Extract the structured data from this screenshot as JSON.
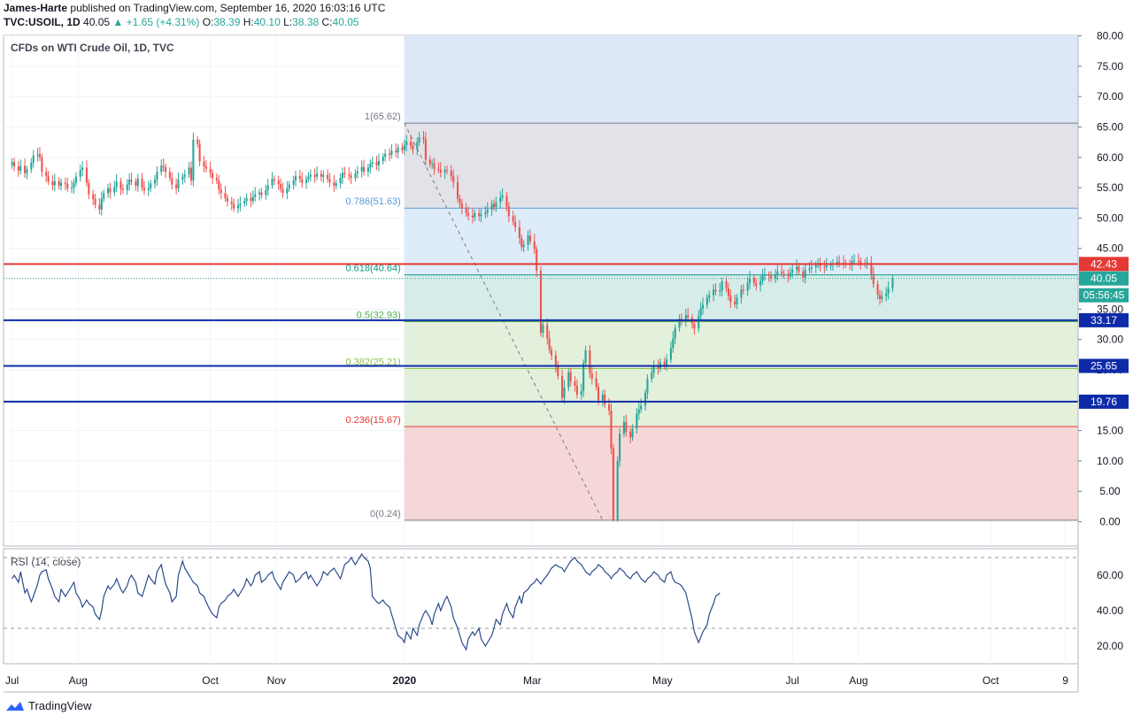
{
  "header": {
    "author": "James-Harte",
    "published_text": "published on TradingView.com, September 16, 2020 16:03:16 UTC",
    "symbol": "TVC:USOIL, 1D",
    "last": "40.05",
    "change": "+1.65 (+4.31%)",
    "open_label": "O:",
    "open": "38.39",
    "high_label": "H:",
    "high": "40.10",
    "low_label": "L:",
    "low": "38.38",
    "close_label": "C:",
    "close": "40.05"
  },
  "pane_titles": {
    "main": "CFDs on WTI Crude Oil, 1D, TVC",
    "rsi": "RSI (14, close)"
  },
  "footer": {
    "brand": "TradingView"
  },
  "colors": {
    "up": "#26a69a",
    "down": "#ef5350",
    "red_line": "#e53935",
    "blue_line": "#0d2ba8",
    "rsi_line": "#2a4a8c",
    "fib_top_blue": "#dce8f8",
    "fib_grey": "#e2e3e8",
    "fib_mid_blue": "#deebf8",
    "fib_teal": "#d6ece8",
    "fib_green": "#e3f0dc",
    "fib_red": "#f6d7d7"
  },
  "chart_data": [
    {
      "type": "candlestick",
      "title": "CFDs on WTI Crude Oil, 1D, TVC",
      "ylim": [
        0,
        80
      ],
      "y_ticks": [
        "0.00",
        "5.00",
        "10.00",
        "15.00",
        "20.00",
        "25.00",
        "30.00",
        "35.00",
        "40.00",
        "45.00",
        "50.00",
        "55.00",
        "60.00",
        "65.00",
        "70.00",
        "75.00",
        "80.00"
      ],
      "x_ticks": [
        "Jul",
        "Aug",
        "Oct",
        "Nov",
        "2020",
        "Mar",
        "May",
        "Jul",
        "Aug",
        "Oct",
        "9"
      ],
      "x_tick_days": [
        0,
        31,
        93,
        124,
        184,
        244,
        305,
        366,
        397,
        459,
        494
      ],
      "x_range_days": [
        -4,
        500
      ],
      "closes": [
        59.2,
        58.5,
        57.8,
        58.6,
        57.4,
        58.0,
        59.1,
        60.3,
        60.5,
        60.0,
        57.6,
        56.9,
        56.0,
        55.4,
        56.1,
        55.3,
        55.8,
        55.6,
        54.9,
        55.0,
        55.8,
        56.8,
        57.9,
        58.3,
        55.8,
        53.9,
        53.1,
        52.2,
        51.4,
        53.2,
        54.1,
        54.9,
        54.2,
        55.1,
        56.0,
        54.8,
        54.6,
        55.5,
        56.3,
        56.0,
        55.3,
        56.5,
        55.0,
        54.6,
        54.9,
        55.7,
        56.3,
        57.6,
        58.6,
        58.4,
        57.6,
        56.6,
        55.5,
        54.9,
        56.3,
        56.8,
        57.2,
        58.3,
        56.2,
        62.9,
        62.2,
        59.3,
        58.5,
        58.1,
        57.4,
        56.6,
        56.2,
        54.7,
        54.1,
        53.3,
        52.7,
        52.3,
        51.6,
        52.1,
        52.4,
        52.8,
        53.3,
        52.8,
        53.5,
        53.9,
        54.2,
        53.8,
        54.6,
        55.4,
        56.4,
        56.2,
        55.6,
        54.8,
        54.1,
        54.9,
        55.5,
        56.2,
        56.9,
        56.4,
        55.8,
        56.4,
        56.8,
        57.1,
        56.8,
        57.3,
        56.8,
        57.1,
        56.4,
        55.9,
        55.3,
        55.7,
        56.6,
        57.4,
        57.2,
        57.0,
        56.6,
        57.3,
        57.7,
        58.4,
        57.6,
        58.3,
        58.9,
        59.2,
        58.7,
        59.4,
        60.1,
        60.6,
        60.4,
        61.1,
        60.8,
        61.6,
        61.2,
        62.0,
        62.6,
        61.9,
        61.3,
        62.5,
        63.3,
        63.0,
        59.6,
        58.9,
        59.0,
        58.1,
        58.0,
        57.5,
        57.9,
        57.8,
        56.9,
        55.9,
        53.2,
        52.4,
        51.6,
        50.8,
        50.4,
        50.1,
        50.8,
        50.3,
        50.6,
        50.9,
        51.4,
        52.3,
        51.8,
        52.6,
        53.4,
        53.7,
        51.9,
        50.3,
        49.4,
        48.5,
        46.7,
        45.2,
        45.6,
        47.1,
        46.2,
        44.9,
        41.3,
        31.1,
        32.4,
        30.2,
        28.3,
        27.4,
        25.6,
        24.0,
        20.4,
        22.1,
        24.6,
        23.1,
        22.4,
        20.9,
        21.5,
        26.1,
        28.2,
        24.4,
        23.6,
        22.2,
        20.0,
        20.9,
        19.3,
        18.3,
        12.1,
        0.24,
        10.0,
        14.5,
        16.4,
        14.8,
        13.9,
        15.3,
        17.8,
        18.5,
        19.1,
        21.2,
        23.5,
        24.5,
        25.5,
        25.2,
        26.3,
        25.8,
        26.7,
        28.6,
        30.2,
        31.9,
        33.4,
        33.1,
        34.0,
        33.6,
        32.6,
        31.8,
        33.9,
        35.1,
        35.7,
        36.9,
        37.3,
        38.2,
        37.9,
        38.1,
        39.6,
        38.4,
        37.2,
        36.2,
        35.8,
        36.9,
        38.2,
        38.0,
        39.3,
        40.1,
        39.3,
        38.9,
        39.6,
        40.5,
        40.6,
        40.5,
        40.1,
        40.7,
        41.2,
        40.9,
        40.8,
        40.4,
        41.0,
        41.5,
        42.0,
        41.2,
        40.2,
        41.5,
        41.7,
        41.9,
        42.3,
        42.6,
        42.0,
        41.9,
        42.2,
        42.3,
        42.5,
        42.8,
        42.7,
        42.6,
        42.4,
        42.3,
        42.9,
        43.0,
        42.9,
        42.5,
        42.4,
        42.7,
        40.8,
        39.1,
        37.4,
        36.7,
        37.1,
        37.6,
        38.4,
        40.05
      ],
      "fib_levels": [
        {
          "label": "1(65.62)",
          "value": 65.62,
          "color": "#787b86"
        },
        {
          "label": "0.786(51.63)",
          "value": 51.63,
          "color": "#5b9bd5"
        },
        {
          "label": "0.618(40.64)",
          "value": 40.64,
          "color": "#089981"
        },
        {
          "label": "0.5(32.93)",
          "value": 32.93,
          "color": "#4caf50"
        },
        {
          "label": "0.382(25.21)",
          "value": 25.21,
          "color": "#8bc34a"
        },
        {
          "label": "0.236(15.67)",
          "value": 15.67,
          "color": "#e53935"
        },
        {
          "label": "0(0.24)",
          "value": 0.24,
          "color": "#787b86"
        }
      ],
      "horizontal_lines": [
        {
          "value": 42.43,
          "label": "42.43",
          "color": "#e53935"
        },
        {
          "value": 33.17,
          "label": "33.17",
          "color": "#0d2ba8"
        },
        {
          "value": 25.65,
          "label": "25.65",
          "color": "#0d2ba8"
        },
        {
          "value": 19.76,
          "label": "19.76",
          "color": "#0d2ba8"
        }
      ],
      "last_price": {
        "value": 40.05,
        "label": "40.05",
        "countdown": "05:56:45"
      }
    },
    {
      "type": "line",
      "title": "RSI (14, close)",
      "ylim": [
        10,
        75
      ],
      "y_ticks": [
        "20.00",
        "40.00",
        "60.00"
      ],
      "bands": [
        30,
        70
      ],
      "values": [
        58,
        60,
        56,
        62,
        50,
        52,
        45,
        48,
        55,
        60,
        62,
        63,
        58,
        52,
        48,
        45,
        52,
        48,
        50,
        54,
        56,
        50,
        46,
        42,
        46,
        44,
        42,
        38,
        35,
        40,
        48,
        54,
        52,
        55,
        58,
        52,
        50,
        54,
        58,
        60,
        56,
        50,
        48,
        52,
        60,
        58,
        55,
        62,
        66,
        60,
        55,
        50,
        45,
        48,
        60,
        68,
        64,
        60,
        58,
        56,
        54,
        50,
        48,
        45,
        40,
        38,
        36,
        42,
        44,
        46,
        48,
        50,
        52,
        48,
        50,
        54,
        58,
        54,
        56,
        60,
        62,
        56,
        58,
        60,
        62,
        58,
        54,
        52,
        56,
        60,
        62,
        60,
        56,
        58,
        60,
        62,
        58,
        60,
        56,
        54,
        58,
        62,
        60,
        62,
        64,
        62,
        58,
        62,
        66,
        68,
        70,
        66,
        68,
        72,
        70,
        68,
        64,
        48,
        45,
        44,
        46,
        44,
        42,
        38,
        30,
        26,
        24,
        22,
        28,
        24,
        30,
        26,
        32,
        38,
        40,
        36,
        32,
        38,
        44,
        40,
        46,
        48,
        42,
        36,
        30,
        26,
        22,
        18,
        24,
        28,
        26,
        30,
        24,
        20,
        22,
        26,
        30,
        35,
        32,
        38,
        44,
        40,
        36,
        42,
        48,
        44,
        50,
        52,
        54,
        56,
        58,
        55,
        57,
        60,
        62,
        64,
        66,
        65,
        64,
        62,
        66,
        68,
        70,
        68,
        66,
        64,
        62,
        60,
        62,
        64,
        66,
        64,
        62,
        60,
        58,
        60,
        62,
        64,
        62,
        60,
        58,
        60,
        62,
        60,
        58,
        56,
        58,
        60,
        62,
        60,
        58,
        56,
        60,
        62,
        58,
        56,
        55,
        54,
        50,
        45,
        35,
        28,
        22,
        25,
        28,
        32,
        38,
        44,
        48,
        50
      ]
    }
  ]
}
